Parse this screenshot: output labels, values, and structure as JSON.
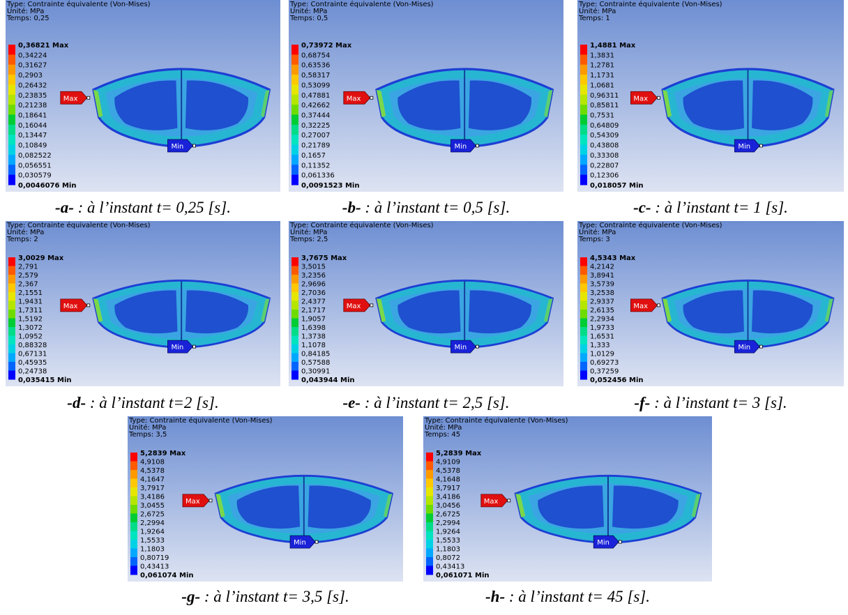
{
  "panels": [
    {
      "header": [
        "Type: Contrainte équivalente (Von-Mises)",
        "Unité: MPa",
        "Temps: 0,25"
      ],
      "legend": [
        "0,36821 Max",
        "0,34224",
        "0,31627",
        "0,2903",
        "0,26432",
        "0,23835",
        "0,21238",
        "0,18641",
        "0,16044",
        "0,13447",
        "0,10849",
        "0,082522",
        "0,056551",
        "0,030579",
        "0,0046076 Min"
      ],
      "flags": {
        "max": "Max",
        "min": "Min"
      },
      "caption": {
        "letter": "-a-",
        "text": " : à l’instant t= 0,25 [s]."
      }
    },
    {
      "header": [
        "Type: Contrainte équivalente (Von-Mises)",
        "Unité: MPa",
        "Temps: 0,5"
      ],
      "legend": [
        "0,73972 Max",
        "0,68754",
        "0,63536",
        "0,58317",
        "0,53099",
        "0,47881",
        "0,42662",
        "0,37444",
        "0,32225",
        "0,27007",
        "0,21789",
        "0,1657",
        "0,11352",
        "0,061336",
        "0,0091523 Min"
      ],
      "flags": {
        "max": "Max",
        "min": "Min"
      },
      "caption": {
        "letter": "-b-",
        "text": " : à l’instant t= 0,5 [s]."
      }
    },
    {
      "header": [
        "Type: Contrainte équivalente (Von-Mises)",
        "Unité: MPa",
        "Temps: 1"
      ],
      "legend": [
        "1,4881 Max",
        "1,3831",
        "1,2781",
        "1,1731",
        "1,0681",
        "0,96311",
        "0,85811",
        "0,7531",
        "0,64809",
        "0,54309",
        "0,43808",
        "0,33308",
        "0,22807",
        "0,12306",
        "0,018057 Min"
      ],
      "flags": {
        "max": "Max",
        "min": "Min"
      },
      "caption": {
        "letter": "-c-",
        "text": " : à l’instant t= 1 [s]."
      }
    },
    {
      "header": [
        "Type: Contrainte équivalente (Von-Mises)",
        "Unité: MPa",
        "Temps: 2"
      ],
      "legend": [
        "3,0029 Max",
        "2,791",
        "2,579",
        "2,367",
        "2,1551",
        "1,9431",
        "1,7311",
        "1,5192",
        "1,3072",
        "1,0952",
        "0,88328",
        "0,67131",
        "0,45935",
        "0,24738",
        "0,035415 Min"
      ],
      "flags": {
        "max": "Max",
        "min": "Min"
      },
      "caption": {
        "letter": "-d-",
        "text": " : à l’instant t=2 [s]."
      }
    },
    {
      "header": [
        "Type: Contrainte équivalente (Von-Mises)",
        "Unité: MPa",
        "Temps: 2,5"
      ],
      "legend": [
        "3,7675 Max",
        "3,5015",
        "3,2356",
        "2,9696",
        "2,7036",
        "2,4377",
        "2,1717",
        "1,9057",
        "1,6398",
        "1,3738",
        "1,1078",
        "0,84185",
        "0,57588",
        "0,30991",
        "0,043944 Min"
      ],
      "flags": {
        "max": "Max",
        "min": "Min"
      },
      "caption": {
        "letter": "-e-",
        "text": " : à l’instant t= 2,5 [s]."
      }
    },
    {
      "header": [
        "Type: Contrainte équivalente (Von-Mises)",
        "Unité: MPa",
        "Temps: 3"
      ],
      "legend": [
        "4,5343 Max",
        "4,2142",
        "3,8941",
        "3,5739",
        "3,2538",
        "2,9337",
        "2,6135",
        "2,2934",
        "1,9733",
        "1,6531",
        "1,333",
        "1,0129",
        "0,69273",
        "0,37259",
        "0,052456 Min"
      ],
      "flags": {
        "max": "Max",
        "min": "Min"
      },
      "caption": {
        "letter": "-f-",
        "text": " : à l’instant t= 3 [s]."
      }
    },
    {
      "header": [
        "Type: Contrainte équivalente (Von-Mises)",
        "Unité: MPa",
        "Temps: 3,5"
      ],
      "legend": [
        "5,2839 Max",
        "4,9108",
        "4,5378",
        "4,1647",
        "3,7917",
        "3,4186",
        "3,0455",
        "2,6725",
        "2,2994",
        "1,9264",
        "1,5533",
        "1,1803",
        "0,80719",
        "0,43413",
        "0,061074 Min"
      ],
      "flags": {
        "max": "Max",
        "min": "Min"
      },
      "caption": {
        "letter": "-g-",
        "text": " : à l’instant t= 3,5 [s]."
      }
    },
    {
      "header": [
        "Type: Contrainte équivalente (Von-Mises)",
        "Unité: MPa",
        "Temps: 45"
      ],
      "legend": [
        "5,2839 Max",
        "4,9109",
        "4,5378",
        "4,1648",
        "3,7917",
        "3,4186",
        "3,0456",
        "2,6725",
        "2,2994",
        "1,9264",
        "1,5533",
        "1,1803",
        "0,8072",
        "0,43413",
        "0,061071 Min"
      ],
      "flags": {
        "max": "Max",
        "min": "Min"
      },
      "caption": {
        "letter": "-h-",
        "text": " : à l’instant t= 45 [s]."
      }
    }
  ]
}
